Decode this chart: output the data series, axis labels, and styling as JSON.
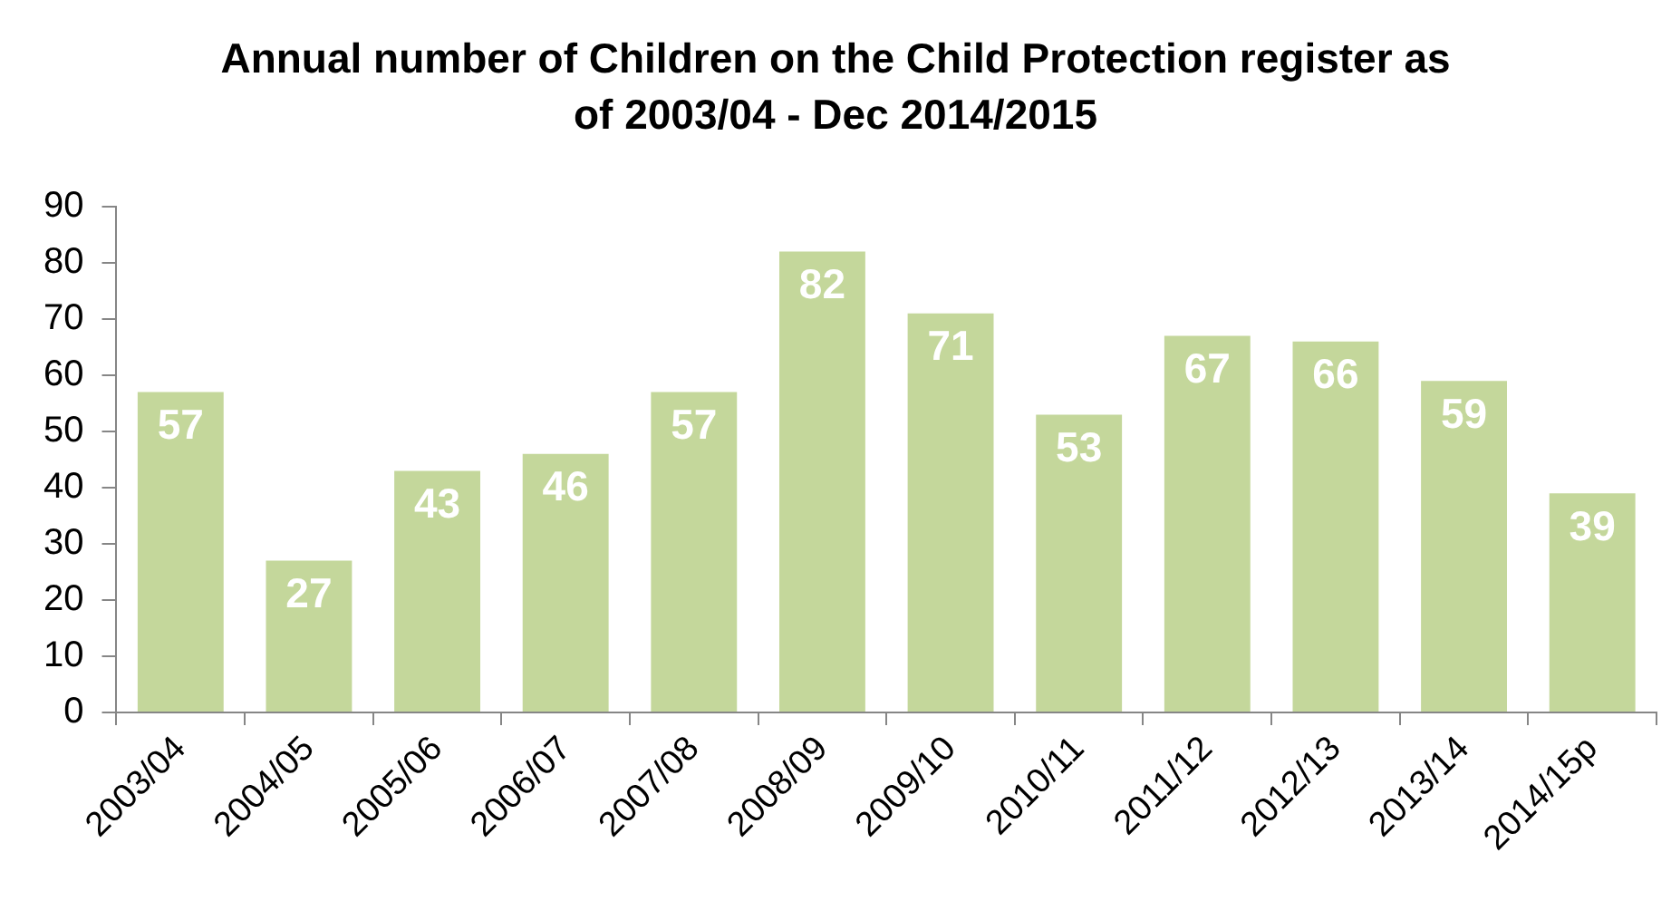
{
  "chart_data": {
    "type": "bar",
    "title": "Annual number of Children on the Child Protection register as of 2003/04 - Dec 2014/2015",
    "categories": [
      "2003/04",
      "2004/05",
      "2005/06",
      "2006/07",
      "2007/08",
      "2008/09",
      "2009/10",
      "2010/11",
      "2011/12",
      "2012/13",
      "2013/14",
      "2014/15p"
    ],
    "values": [
      57,
      27,
      43,
      46,
      57,
      82,
      71,
      53,
      67,
      66,
      59,
      39
    ],
    "color": "#c4d79b",
    "ylim": [
      0,
      90
    ],
    "yticks": [
      0,
      10,
      20,
      30,
      40,
      50,
      60,
      70,
      80,
      90
    ],
    "grid": false,
    "data_labels": true
  }
}
